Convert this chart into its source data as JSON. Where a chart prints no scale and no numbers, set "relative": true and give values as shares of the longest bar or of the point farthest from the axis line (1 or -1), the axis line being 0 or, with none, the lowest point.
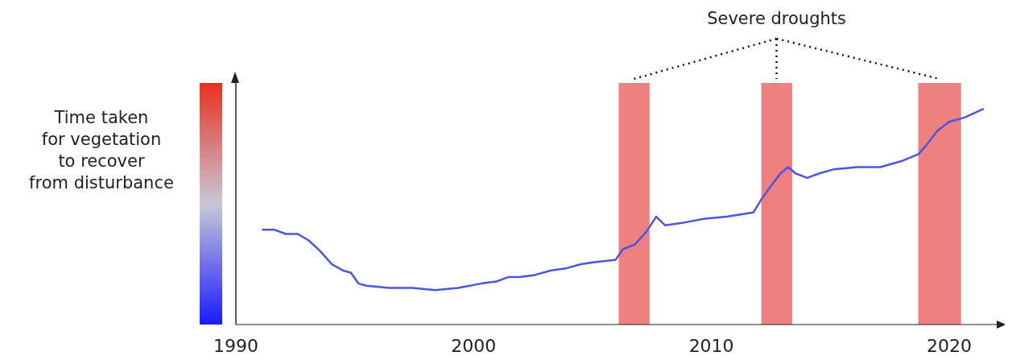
{
  "chart_data": {
    "type": "line",
    "relative": true,
    "ylabel": "Time taken\nfor vegetation\nto recover\nfrom disturbance",
    "xlim": [
      1990,
      2022
    ],
    "xticks": [
      1990,
      2000,
      2010,
      2020
    ],
    "series": [
      {
        "color": "#4a55e0",
        "x": [
          1991.1,
          1991.6,
          1992.1,
          1992.6,
          1993.06,
          1993.55,
          1994.03,
          1994.52,
          1994.84,
          1995.16,
          1995.48,
          1996.45,
          1997.42,
          1998.39,
          1999.35,
          2000.32,
          2000.97,
          2001.45,
          2001.94,
          2002.58,
          2003.23,
          2003.87,
          2004.52,
          2005.16,
          2005.97,
          2006.29,
          2006.77,
          2007.26,
          2007.68,
          2008.06,
          2008.71,
          2009.68,
          2010.65,
          2011.77,
          2012.1,
          2012.42,
          2012.9,
          2013.23,
          2013.55,
          2014.03,
          2014.52,
          2015.16,
          2016.13,
          2017.1,
          2018.06,
          2018.71,
          2019.03,
          2019.52,
          2020.0,
          2020.65,
          2021.45
        ],
        "values": [
          0.44,
          0.44,
          0.42,
          0.42,
          0.39,
          0.34,
          0.28,
          0.25,
          0.24,
          0.19,
          0.18,
          0.17,
          0.17,
          0.16,
          0.17,
          0.19,
          0.2,
          0.22,
          0.22,
          0.23,
          0.25,
          0.26,
          0.28,
          0.29,
          0.3,
          0.35,
          0.37,
          0.43,
          0.5,
          0.46,
          0.47,
          0.49,
          0.5,
          0.52,
          0.58,
          0.63,
          0.7,
          0.73,
          0.7,
          0.68,
          0.7,
          0.72,
          0.73,
          0.73,
          0.76,
          0.79,
          0.83,
          0.9,
          0.94,
          0.96,
          1
        ]
      }
    ],
    "bands": [
      {
        "axis": "x",
        "from": 2006.1,
        "to": 2007.4,
        "color": "#ee8080"
      },
      {
        "axis": "x",
        "from": 2012.1,
        "to": 2013.4,
        "color": "#ee8080"
      },
      {
        "axis": "x",
        "from": 2018.7,
        "to": 2020.5,
        "color": "#ee8080"
      }
    ],
    "annotations": [
      "Severe droughts"
    ]
  }
}
